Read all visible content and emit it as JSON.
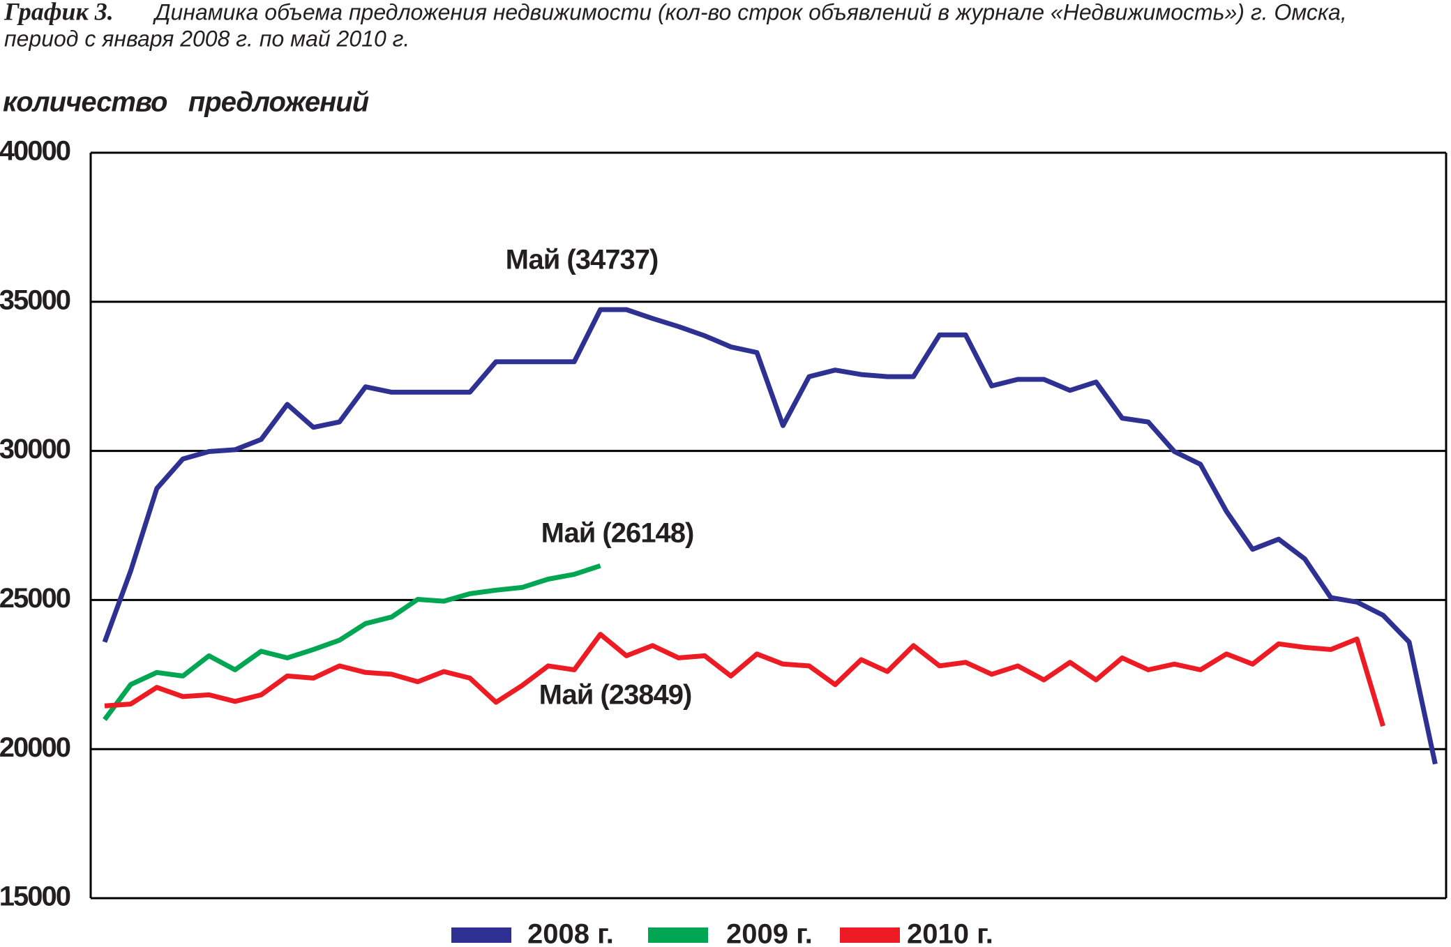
{
  "chart_data": {
    "type": "line",
    "title": "График 3.",
    "subtitle": [
      "Динамика объема предложения недвижимости (кол-во строк объявлений в журнале «Недвижимость») г. Омска,",
      "период с января 2008 г. по май 2010 г."
    ],
    "y_label": "количество   предложений",
    "categories": [
      null,
      null,
      null,
      null,
      null,
      null,
      null,
      null,
      null,
      null,
      null,
      null,
      null,
      null,
      null,
      null,
      null,
      null,
      null,
      null,
      null,
      null,
      null,
      null,
      null,
      null,
      null,
      null,
      null,
      null,
      null,
      null,
      null,
      null,
      null,
      null,
      null,
      null,
      null,
      null,
      null,
      null,
      null,
      null,
      null,
      null,
      null,
      null,
      null,
      null,
      null,
      null
    ],
    "series": [
      {
        "name": "2008 г.",
        "color": "#2e3192",
        "values": [
          23590,
          25980,
          28740,
          29730,
          29980,
          30040,
          30385,
          31560,
          30790,
          30970,
          32150,
          31970,
          31970,
          31970,
          31970,
          32990,
          32990,
          32990,
          32990,
          34737,
          34737,
          34440,
          34170,
          33860,
          33490,
          33300,
          30850,
          32490,
          32710,
          32560,
          32490,
          32490,
          33890,
          33890,
          32180,
          32400,
          32400,
          32030,
          32310,
          31100,
          30970,
          29980,
          29550,
          27970,
          26700,
          27040,
          26380,
          25080,
          24930,
          24490,
          23590,
          19500
        ]
      },
      {
        "name": "2009 г.",
        "color": "#00a651",
        "values": [
          20990,
          22165,
          22570,
          22450,
          23130,
          22660,
          23280,
          23060,
          23340,
          23650,
          24210,
          24430,
          25020,
          24960,
          25210,
          25330,
          25420,
          25700,
          25860,
          26148,
          null,
          null,
          null,
          null,
          null,
          null,
          null,
          null,
          null,
          null,
          null,
          null,
          null,
          null,
          null,
          null,
          null,
          null,
          null,
          null,
          null,
          null,
          null,
          null,
          null,
          null,
          null,
          null,
          null,
          null,
          null,
          null
        ]
      },
      {
        "name": "2010 г.",
        "color": "#ed1c24",
        "values": [
          21450,
          21510,
          22070,
          21760,
          21820,
          21600,
          21820,
          22450,
          22380,
          22790,
          22570,
          22510,
          22260,
          22600,
          22380,
          21570,
          22130,
          22790,
          22660,
          23849,
          23130,
          23470,
          23060,
          23130,
          22450,
          23190,
          22850,
          22790,
          22160,
          23000,
          22600,
          23470,
          22790,
          22910,
          22510,
          22790,
          22320,
          22910,
          22320,
          23060,
          22660,
          22850,
          22660,
          23190,
          22850,
          23530,
          23410,
          23340,
          23690,
          20770,
          null,
          null
        ]
      }
    ],
    "annotations": [
      "Май (34737)",
      "Май (26148)",
      "Май (23849)"
    ],
    "ylim": [
      15000,
      40000
    ],
    "yticks": [
      15000,
      20000,
      25000,
      30000,
      35000,
      40000
    ],
    "grid": true
  }
}
